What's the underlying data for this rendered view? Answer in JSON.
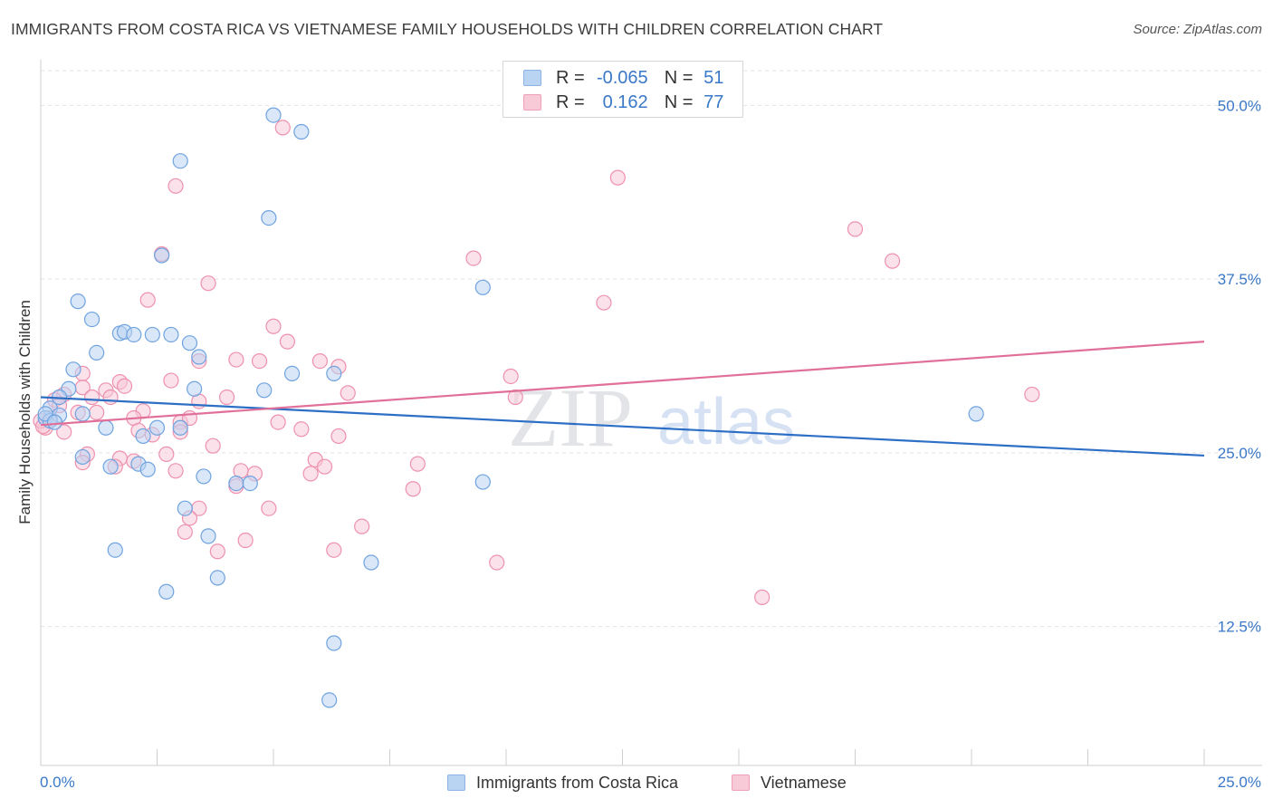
{
  "title": "IMMIGRANTS FROM COSTA RICA VS VIETNAMESE FAMILY HOUSEHOLDS WITH CHILDREN CORRELATION CHART",
  "source": "Source: ZipAtlas.com",
  "watermark": {
    "zip": "ZIP",
    "atlas": "atlas"
  },
  "legend": {
    "r_label": "R =",
    "n_label": "N =",
    "rows": [
      {
        "r": "-0.065",
        "n": "51",
        "color": "#b9d3f2"
      },
      {
        "r": "0.162",
        "n": "77",
        "color": "#f8c9d7"
      }
    ]
  },
  "chart_data": {
    "type": "scatter",
    "title": "IMMIGRANTS FROM COSTA RICA VS VIETNAMESE FAMILY HOUSEHOLDS WITH CHILDREN CORRELATION CHART",
    "xlabel": "",
    "ylabel": "Family Households with Children",
    "xlim": [
      0,
      25
    ],
    "ylim": [
      2.5,
      52.5
    ],
    "x_tick_labels": [
      "0.0%",
      "25.0%"
    ],
    "y_ticks": [
      12.5,
      25.0,
      37.5,
      50.0
    ],
    "y_tick_labels": [
      "12.5%",
      "25.0%",
      "37.5%",
      "50.0%"
    ],
    "grid": true,
    "series": [
      {
        "name": "Immigrants from Costa Rica",
        "color": "#6fa3e0",
        "fill": "#b9d3f2",
        "trend_color": "#2e6fc6",
        "trend": [
          [
            0,
            29.0
          ],
          [
            25,
            24.8
          ]
        ],
        "points": [
          [
            5.0,
            49.3
          ],
          [
            5.6,
            48.1
          ],
          [
            3.0,
            46.0
          ],
          [
            4.9,
            41.9
          ],
          [
            2.6,
            39.2
          ],
          [
            9.5,
            36.9
          ],
          [
            0.8,
            35.9
          ],
          [
            1.1,
            34.6
          ],
          [
            1.7,
            33.6
          ],
          [
            1.8,
            33.7
          ],
          [
            2.0,
            33.5
          ],
          [
            2.4,
            33.5
          ],
          [
            2.8,
            33.5
          ],
          [
            3.2,
            32.9
          ],
          [
            1.2,
            32.2
          ],
          [
            3.4,
            31.9
          ],
          [
            0.7,
            31.0
          ],
          [
            5.4,
            30.7
          ],
          [
            6.3,
            30.7
          ],
          [
            0.6,
            29.6
          ],
          [
            3.3,
            29.6
          ],
          [
            4.8,
            29.5
          ],
          [
            0.4,
            29.0
          ],
          [
            0.2,
            28.2
          ],
          [
            0.4,
            27.7
          ],
          [
            0.1,
            27.5
          ],
          [
            0.2,
            27.3
          ],
          [
            0.9,
            27.8
          ],
          [
            1.4,
            26.8
          ],
          [
            2.2,
            26.2
          ],
          [
            2.5,
            26.8
          ],
          [
            3.0,
            26.8
          ],
          [
            20.1,
            27.8
          ],
          [
            0.9,
            24.7
          ],
          [
            1.5,
            24.0
          ],
          [
            2.1,
            24.2
          ],
          [
            2.3,
            23.8
          ],
          [
            3.5,
            23.3
          ],
          [
            4.2,
            22.8
          ],
          [
            4.5,
            22.8
          ],
          [
            9.5,
            22.9
          ],
          [
            3.1,
            21.0
          ],
          [
            3.6,
            19.0
          ],
          [
            1.6,
            18.0
          ],
          [
            7.1,
            17.1
          ],
          [
            3.8,
            16.0
          ],
          [
            2.7,
            15.0
          ],
          [
            6.3,
            11.3
          ],
          [
            6.2,
            7.2
          ],
          [
            0.1,
            27.8
          ],
          [
            0.3,
            27.2
          ]
        ]
      },
      {
        "name": "Vietnamese",
        "color": "#ee91ae",
        "fill": "#f8c9d7",
        "trend_color": "#e0709a",
        "trend": [
          [
            0,
            27.0
          ],
          [
            25,
            33.0
          ]
        ],
        "points": [
          [
            5.2,
            48.4
          ],
          [
            12.4,
            44.8
          ],
          [
            2.9,
            44.2
          ],
          [
            17.5,
            41.1
          ],
          [
            2.6,
            39.3
          ],
          [
            9.3,
            39.0
          ],
          [
            18.3,
            38.8
          ],
          [
            3.6,
            37.2
          ],
          [
            2.3,
            36.0
          ],
          [
            12.1,
            35.8
          ],
          [
            5.0,
            34.1
          ],
          [
            5.3,
            33.0
          ],
          [
            3.4,
            31.6
          ],
          [
            4.2,
            31.7
          ],
          [
            4.7,
            31.6
          ],
          [
            6.0,
            31.6
          ],
          [
            6.4,
            31.2
          ],
          [
            0.9,
            30.7
          ],
          [
            10.1,
            30.5
          ],
          [
            2.8,
            30.2
          ],
          [
            1.7,
            30.1
          ],
          [
            1.8,
            29.8
          ],
          [
            0.9,
            29.7
          ],
          [
            1.4,
            29.5
          ],
          [
            0.5,
            29.2
          ],
          [
            6.6,
            29.3
          ],
          [
            21.3,
            29.2
          ],
          [
            1.1,
            29.0
          ],
          [
            1.5,
            29.0
          ],
          [
            10.2,
            29.0
          ],
          [
            3.4,
            28.7
          ],
          [
            4.0,
            29.0
          ],
          [
            0.3,
            28.8
          ],
          [
            0.4,
            28.4
          ],
          [
            0.8,
            27.9
          ],
          [
            1.2,
            27.9
          ],
          [
            2.2,
            28.0
          ],
          [
            0.2,
            27.5
          ],
          [
            2.0,
            27.5
          ],
          [
            3.0,
            27.2
          ],
          [
            3.2,
            27.5
          ],
          [
            5.1,
            27.2
          ],
          [
            0.5,
            26.5
          ],
          [
            2.1,
            26.6
          ],
          [
            2.4,
            26.3
          ],
          [
            3.0,
            26.5
          ],
          [
            5.6,
            26.7
          ],
          [
            6.4,
            26.2
          ],
          [
            3.7,
            25.5
          ],
          [
            0.1,
            26.8
          ],
          [
            2.7,
            24.9
          ],
          [
            1.0,
            24.9
          ],
          [
            1.7,
            24.6
          ],
          [
            2.0,
            24.4
          ],
          [
            0.9,
            24.3
          ],
          [
            1.6,
            24.0
          ],
          [
            5.9,
            24.5
          ],
          [
            8.1,
            24.2
          ],
          [
            4.3,
            23.7
          ],
          [
            4.6,
            23.5
          ],
          [
            6.1,
            24.0
          ],
          [
            2.9,
            23.7
          ],
          [
            5.8,
            23.5
          ],
          [
            4.2,
            22.6
          ],
          [
            8.0,
            22.4
          ],
          [
            3.4,
            21.0
          ],
          [
            4.9,
            21.0
          ],
          [
            3.2,
            20.3
          ],
          [
            6.9,
            19.7
          ],
          [
            3.1,
            19.3
          ],
          [
            4.4,
            18.7
          ],
          [
            3.8,
            17.9
          ],
          [
            6.3,
            18.0
          ],
          [
            9.8,
            17.1
          ],
          [
            15.5,
            14.6
          ],
          [
            0.0,
            27.3
          ],
          [
            0.05,
            26.9
          ]
        ]
      }
    ]
  }
}
